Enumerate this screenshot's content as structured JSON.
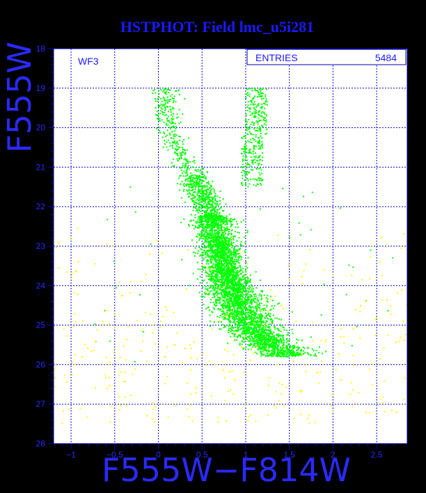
{
  "chart_data": {
    "type": "scatter",
    "title": "HSTPHOT: Field lmc_u5i281",
    "xlabel": "F555W−F814W",
    "ylabel": "F555W",
    "xlim": [
      -1.2,
      2.85
    ],
    "ylim": [
      28,
      18
    ],
    "y_inverted": true,
    "grid": true,
    "frame_label": "WF3",
    "stats_box": {
      "label": "ENTRIES",
      "value": "5484"
    },
    "x_ticks": [
      -1,
      -0.5,
      0,
      0.5,
      1,
      1.5,
      2,
      2.5
    ],
    "x_tick_labels": [
      "−1",
      "−0.5",
      "0",
      "0.5",
      "1",
      "1.5",
      "2",
      "2.5"
    ],
    "y_ticks": [
      18,
      19,
      20,
      21,
      22,
      23,
      24,
      25,
      26,
      27,
      28
    ],
    "y_tick_labels": [
      "18",
      "19",
      "20",
      "21",
      "22",
      "23",
      "24",
      "25",
      "26",
      "27",
      "28"
    ],
    "series": [
      {
        "color": "#00ff00",
        "ridge": [
          [
            0.1,
            19.0
          ],
          [
            0.1,
            19.6
          ],
          [
            0.12,
            20.0
          ],
          [
            0.2,
            20.4
          ],
          [
            0.3,
            20.8
          ],
          [
            0.4,
            21.2
          ],
          [
            0.52,
            21.8
          ],
          [
            0.6,
            22.2
          ],
          [
            0.66,
            22.7
          ],
          [
            0.72,
            23.2
          ],
          [
            0.76,
            23.6
          ],
          [
            0.82,
            24.0
          ],
          [
            0.9,
            24.4
          ],
          [
            1.0,
            24.8
          ],
          [
            1.12,
            25.2
          ],
          [
            1.28,
            25.5
          ],
          [
            1.45,
            25.7
          ]
        ],
        "clumps": [
          {
            "x": [
              1.0,
              1.25
            ],
            "y": [
              19.0,
              20.2
            ]
          },
          {
            "x": [
              0.95,
              1.2
            ],
            "y": [
              20.2,
              21.5
            ]
          }
        ],
        "count": 5164
      },
      {
        "color": "#ffff00",
        "range_x": [
          -1.2,
          2.85
        ],
        "range_y": [
          21.5,
          28.0
        ],
        "count": 320
      }
    ]
  }
}
